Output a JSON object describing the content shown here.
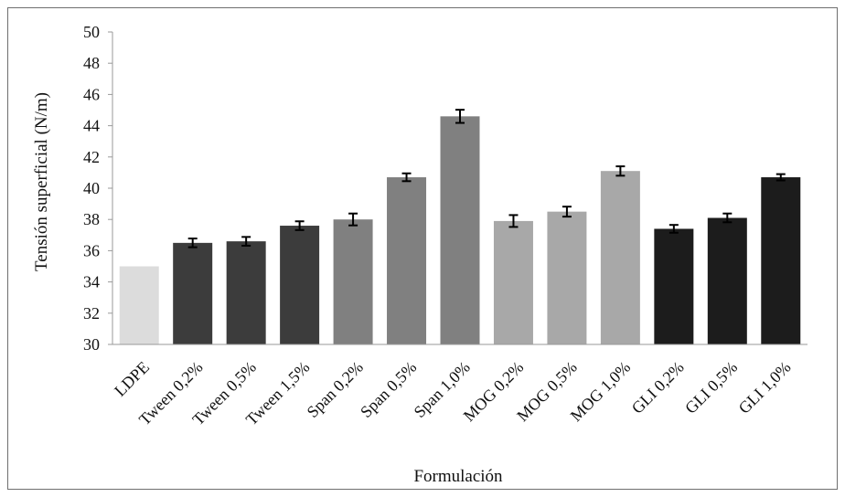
{
  "chart_data": {
    "type": "bar",
    "title": "",
    "xlabel": "Formulación",
    "ylabel": "Tensión superficial (N/m)",
    "ylim": [
      30,
      50
    ],
    "yticks": [
      30,
      32,
      34,
      36,
      38,
      40,
      42,
      44,
      46,
      48,
      50
    ],
    "grid": false,
    "legend": "none",
    "categories": [
      "LDPE",
      "Tween 0,2%",
      "Tween 0,5%",
      "Tween 1,5%",
      "Span 0,2%",
      "Span 0,5%",
      "Span 1,0%",
      "MOG 0,2%",
      "MOG 0,5%",
      "MOG 1,0%",
      "GLI 0,2%",
      "GLI 0,5%",
      "GLI 1,0%"
    ],
    "values": [
      35.0,
      36.5,
      36.6,
      37.6,
      38.0,
      40.7,
      44.6,
      37.9,
      38.5,
      41.1,
      37.4,
      38.1,
      40.7
    ],
    "errors": [
      0,
      0.28,
      0.28,
      0.28,
      0.38,
      0.25,
      0.42,
      0.38,
      0.32,
      0.3,
      0.25,
      0.28,
      0.2
    ],
    "colors": [
      "#dcdcdc",
      "#3c3c3c",
      "#3c3c3c",
      "#3c3c3c",
      "#808080",
      "#808080",
      "#808080",
      "#a8a8a8",
      "#a8a8a8",
      "#a8a8a8",
      "#1c1c1c",
      "#1c1c1c",
      "#1c1c1c"
    ]
  }
}
